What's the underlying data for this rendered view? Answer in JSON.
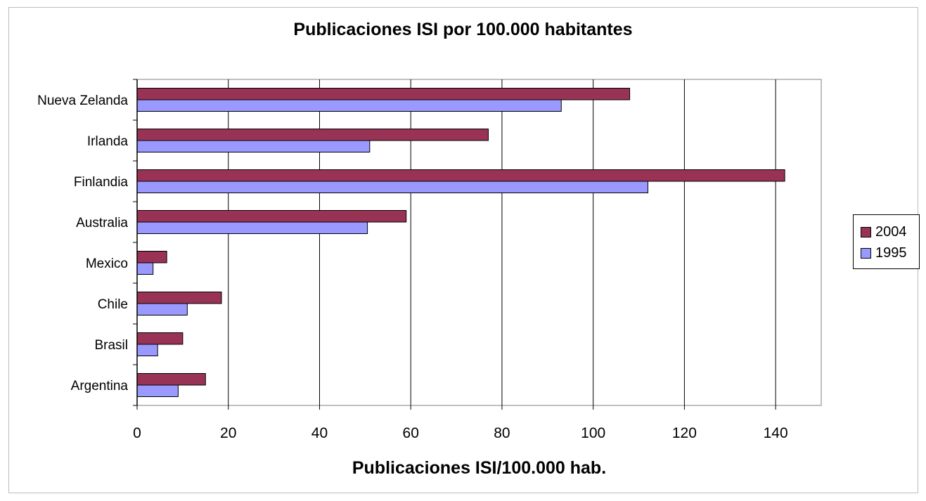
{
  "chart_data": {
    "type": "bar",
    "orientation": "horizontal",
    "title": "Publicaciones ISI por 100.000  habitantes",
    "xlabel": "Publicaciones ISI/100.000 hab.",
    "ylabel": "",
    "categories": [
      "Nueva Zelanda",
      "Irlanda",
      "Finlandia",
      "Australia",
      "Mexico",
      "Chile",
      "Brasil",
      "Argentina"
    ],
    "series": [
      {
        "name": "2004",
        "color": "#993355",
        "values": [
          108,
          77,
          142,
          59,
          6.5,
          18.5,
          10,
          15
        ]
      },
      {
        "name": "1995",
        "color": "#9999ff",
        "values": [
          93,
          51,
          112,
          50.5,
          3.5,
          11,
          4.5,
          9
        ]
      }
    ],
    "xlim": [
      0,
      150
    ],
    "xticks": [
      0,
      20,
      40,
      60,
      80,
      100,
      120,
      140
    ],
    "grid": true,
    "legend_position": "right"
  }
}
